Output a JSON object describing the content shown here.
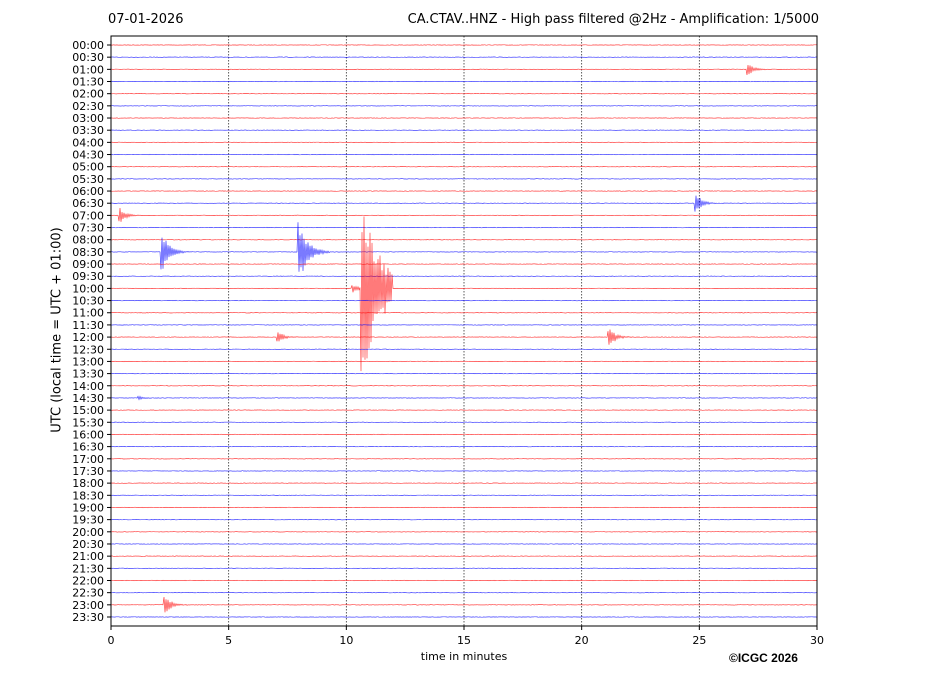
{
  "header": {
    "date": "07-01-2026",
    "title": "CA.CTAV..HNZ - High pass filtered @2Hz - Amplification: 1/5000"
  },
  "footer": {
    "copyright": "©ICGC 2026"
  },
  "chart_data": {
    "type": "line",
    "title": "CA.CTAV..HNZ - High pass filtered @2Hz - Amplification: 1/5000",
    "xlabel": "time in minutes",
    "ylabel": "UTC (local time = UTC + 01:00)",
    "xlim": [
      0,
      30
    ],
    "xticks": [
      "0",
      "5",
      "10",
      "15",
      "20",
      "25",
      "30"
    ],
    "grid": "vertical dotted at every 5 minutes",
    "colors": [
      "#ff0000",
      "#0000ff"
    ],
    "rows": [
      "00:00",
      "00:30",
      "01:00",
      "01:30",
      "02:00",
      "02:30",
      "03:00",
      "03:30",
      "04:00",
      "04:30",
      "05:00",
      "05:30",
      "06:00",
      "06:30",
      "07:00",
      "07:30",
      "08:00",
      "08:30",
      "09:00",
      "09:30",
      "10:00",
      "10:30",
      "11:00",
      "11:30",
      "12:00",
      "12:30",
      "13:00",
      "13:30",
      "14:00",
      "14:30",
      "15:00",
      "15:30",
      "16:00",
      "16:30",
      "17:00",
      "17:30",
      "18:00",
      "18:30",
      "19:00",
      "19:30",
      "20:00",
      "20:30",
      "21:00",
      "21:30",
      "22:00",
      "22:30",
      "23:00",
      "23:30"
    ],
    "events": [
      {
        "row": "01:00",
        "minute": 27.1,
        "amplitude": 0.5
      },
      {
        "row": "06:30",
        "minute": 24.9,
        "amplitude": 0.7
      },
      {
        "row": "07:00",
        "minute": 0.4,
        "amplitude": 0.6
      },
      {
        "row": "08:30",
        "minute": 2.2,
        "amplitude": 1.5
      },
      {
        "row": "08:30",
        "minute": 8.0,
        "amplitude": 2.3
      },
      {
        "row": "10:00",
        "minute": 10.3,
        "amplitude": 0.3
      },
      {
        "row": "10:00",
        "minute": 10.7,
        "amplitude": 6.8
      },
      {
        "row": "12:00",
        "minute": 7.1,
        "amplitude": 0.5
      },
      {
        "row": "12:00",
        "minute": 21.2,
        "amplitude": 0.8
      },
      {
        "row": "14:30",
        "minute": 1.2,
        "amplitude": 0.15
      },
      {
        "row": "23:00",
        "minute": 2.3,
        "amplitude": 0.8
      }
    ]
  }
}
